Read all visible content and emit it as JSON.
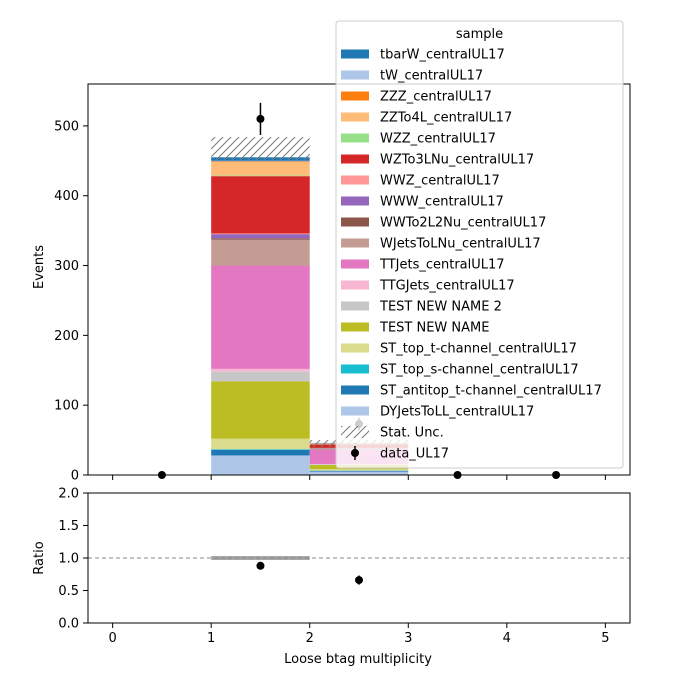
{
  "chart_data": [
    {
      "type": "bar",
      "stacked": true,
      "ylabel": "Events",
      "xlim": [
        -0.25,
        5.25
      ],
      "ylim": [
        0,
        560
      ],
      "x_ticks": [
        "0",
        "1",
        "2",
        "3",
        "4",
        "5"
      ],
      "y_ticks": [
        "0",
        "100",
        "200",
        "300",
        "400",
        "500"
      ],
      "bins": [
        [
          0,
          1
        ],
        [
          1,
          2
        ],
        [
          2,
          3
        ],
        [
          3,
          4
        ],
        [
          4,
          5
        ]
      ],
      "legend": {
        "title": "sample",
        "placement": "top-right"
      },
      "series": [
        {
          "name": "DYJetsToLL_centralUL17",
          "color": "#aec7e8",
          "values": [
            0,
            28,
            5,
            0,
            0
          ]
        },
        {
          "name": "ST_antitop_t-channel_centralUL17",
          "color": "#1f77b4",
          "values": [
            0,
            8,
            1,
            0,
            0
          ]
        },
        {
          "name": "ST_top_s-channel_centralUL17",
          "color": "#17becf",
          "values": [
            0,
            1,
            0.3,
            0,
            0
          ]
        },
        {
          "name": "ST_top_t-channel_centralUL17",
          "color": "#dbdb8d",
          "values": [
            0,
            15,
            2,
            0,
            0
          ]
        },
        {
          "name": "TEST NEW NAME",
          "color": "#bcbd22",
          "values": [
            0,
            82,
            6,
            0,
            0
          ]
        },
        {
          "name": "TEST NEW NAME 2",
          "color": "#c7c7c7",
          "values": [
            0,
            14,
            1,
            0,
            0
          ]
        },
        {
          "name": "TTGJets_centralUL17",
          "color": "#f7b6d2",
          "values": [
            0,
            4,
            0.5,
            0,
            0
          ]
        },
        {
          "name": "TTJets_centralUL17",
          "color": "#e377c2",
          "values": [
            0,
            148,
            20,
            0,
            0
          ]
        },
        {
          "name": "WJetsToLNu_centralUL17",
          "color": "#c49c94",
          "values": [
            0,
            37,
            2,
            0,
            0
          ]
        },
        {
          "name": "WWTo2L2Nu_centralUL17",
          "color": "#8c564b",
          "values": [
            0,
            2,
            0.3,
            0,
            0
          ]
        },
        {
          "name": "WWW_centralUL17",
          "color": "#9467bd",
          "values": [
            0,
            6,
            0.5,
            0,
            0
          ]
        },
        {
          "name": "WWZ_centralUL17",
          "color": "#ff9896",
          "values": [
            0,
            1,
            0.2,
            0,
            0
          ]
        },
        {
          "name": "WZTo3LNu_centralUL17",
          "color": "#d62728",
          "values": [
            0,
            82,
            5,
            0,
            0
          ]
        },
        {
          "name": "WZZ_centralUL17",
          "color": "#98df8a",
          "values": [
            0,
            1,
            0.2,
            0,
            0
          ]
        },
        {
          "name": "ZZTo4L_centralUL17",
          "color": "#ffbb78",
          "values": [
            0,
            19,
            1,
            0,
            0
          ]
        },
        {
          "name": "ZZZ_centralUL17",
          "color": "#ff7f0e",
          "values": [
            0,
            1,
            0.2,
            0,
            0
          ]
        },
        {
          "name": "tW_centralUL17",
          "color": "#aec7e8",
          "values": [
            0,
            1,
            0.2,
            0,
            0
          ]
        },
        {
          "name": "tbarW_centralUL17",
          "color": "#1f77b4",
          "values": [
            0,
            5,
            0.5,
            0,
            0
          ]
        }
      ],
      "stat_unc": {
        "name": "Stat. Unc.",
        "up": [
          0,
          484,
          50,
          0,
          0
        ],
        "down": [
          0,
          451,
          40,
          0,
          0
        ]
      },
      "data_series": {
        "name": "data_UL17",
        "x": [
          0.5,
          1.5,
          2.5,
          3.5,
          4.5
        ],
        "y": [
          0,
          510,
          73,
          0,
          0
        ],
        "yerr": [
          0,
          23,
          9,
          0,
          0
        ]
      },
      "legend_order": [
        "tbarW_centralUL17",
        "tW_centralUL17",
        "ZZZ_centralUL17",
        "ZZTo4L_centralUL17",
        "WZZ_centralUL17",
        "WZTo3LNu_centralUL17",
        "WWZ_centralUL17",
        "WWW_centralUL17",
        "WWTo2L2Nu_centralUL17",
        "WJetsToLNu_centralUL17",
        "TTJets_centralUL17",
        "TTGJets_centralUL17",
        "TEST NEW NAME 2",
        "TEST NEW NAME",
        "ST_top_t-channel_centralUL17",
        "ST_top_s-channel_centralUL17",
        "ST_antitop_t-channel_centralUL17",
        "DYJetsToLL_centralUL17"
      ]
    },
    {
      "type": "scatter",
      "xlabel": "Loose btag multiplicity",
      "ylabel": "Ratio",
      "xlim": [
        -0.25,
        5.25
      ],
      "ylim": [
        0,
        2.0
      ],
      "x_ticks": [
        "0",
        "1",
        "2",
        "3",
        "4",
        "5"
      ],
      "y_ticks": [
        "0.0",
        "0.5",
        "1.0",
        "1.5",
        "2.0"
      ],
      "reference_line": 1.0,
      "unc_band": {
        "x_range": [
          1,
          2
        ],
        "y_range": [
          0.97,
          1.03
        ]
      },
      "points": {
        "x": [
          1.5,
          2.5
        ],
        "y": [
          0.88,
          0.66
        ],
        "yerr": [
          0.03,
          0.07
        ]
      }
    }
  ]
}
